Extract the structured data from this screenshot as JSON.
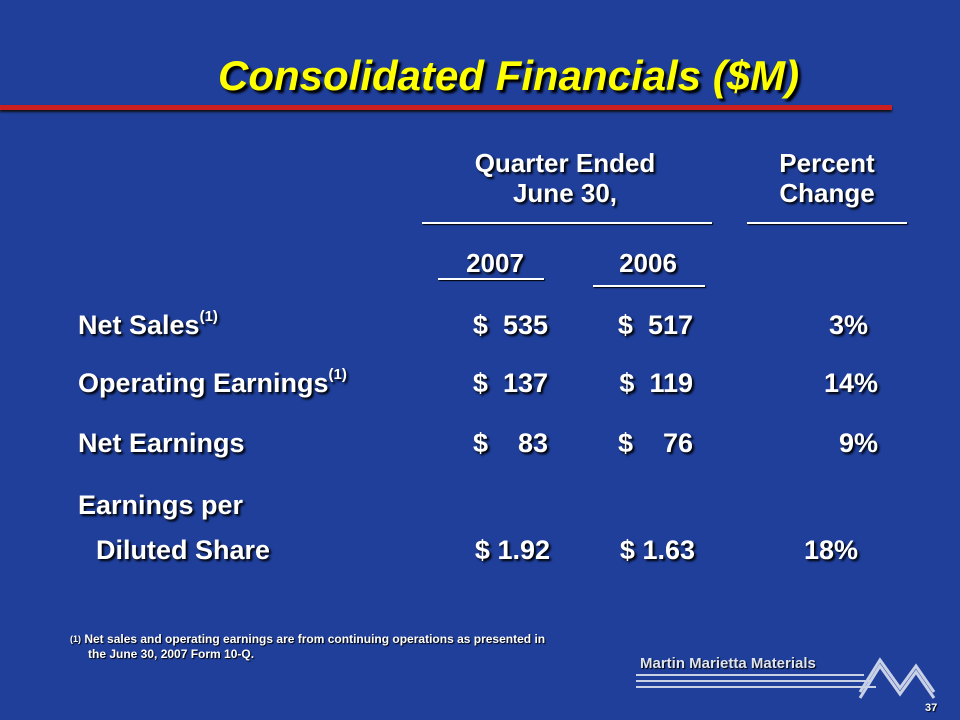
{
  "slide": {
    "title": "Consolidated Financials ($M)",
    "header": {
      "quarter_line1": "Quarter Ended",
      "quarter_line2": "June 30,",
      "percent_line1": "Percent",
      "percent_line2": "Change",
      "year_2007": "2007",
      "year_2006": "2006"
    },
    "rows": [
      {
        "label": "Net Sales",
        "sup": "(1)",
        "v2007": "$  535",
        "v2006": "$  517",
        "pct": "3%"
      },
      {
        "label": "Operating Earnings",
        "sup": "(1)",
        "v2007": "$  137",
        "v2006": "$  119",
        "pct": "14%"
      },
      {
        "label": "Net Earnings",
        "sup": "",
        "v2007": "$    83",
        "v2006": "$    76",
        "pct": "9%"
      },
      {
        "label_line1": "Earnings per",
        "label_line2": "Diluted Share",
        "v2007": "$ 1.92",
        "v2006": "$ 1.63",
        "pct": "18%"
      }
    ],
    "footnote": {
      "marker": "(1)",
      "line1": "Net sales and operating earnings are from continuing operations as presented in",
      "line2": "the June 30, 2007 Form 10-Q."
    },
    "logo_text": "Martin Marietta Materials",
    "page_number": "37"
  }
}
